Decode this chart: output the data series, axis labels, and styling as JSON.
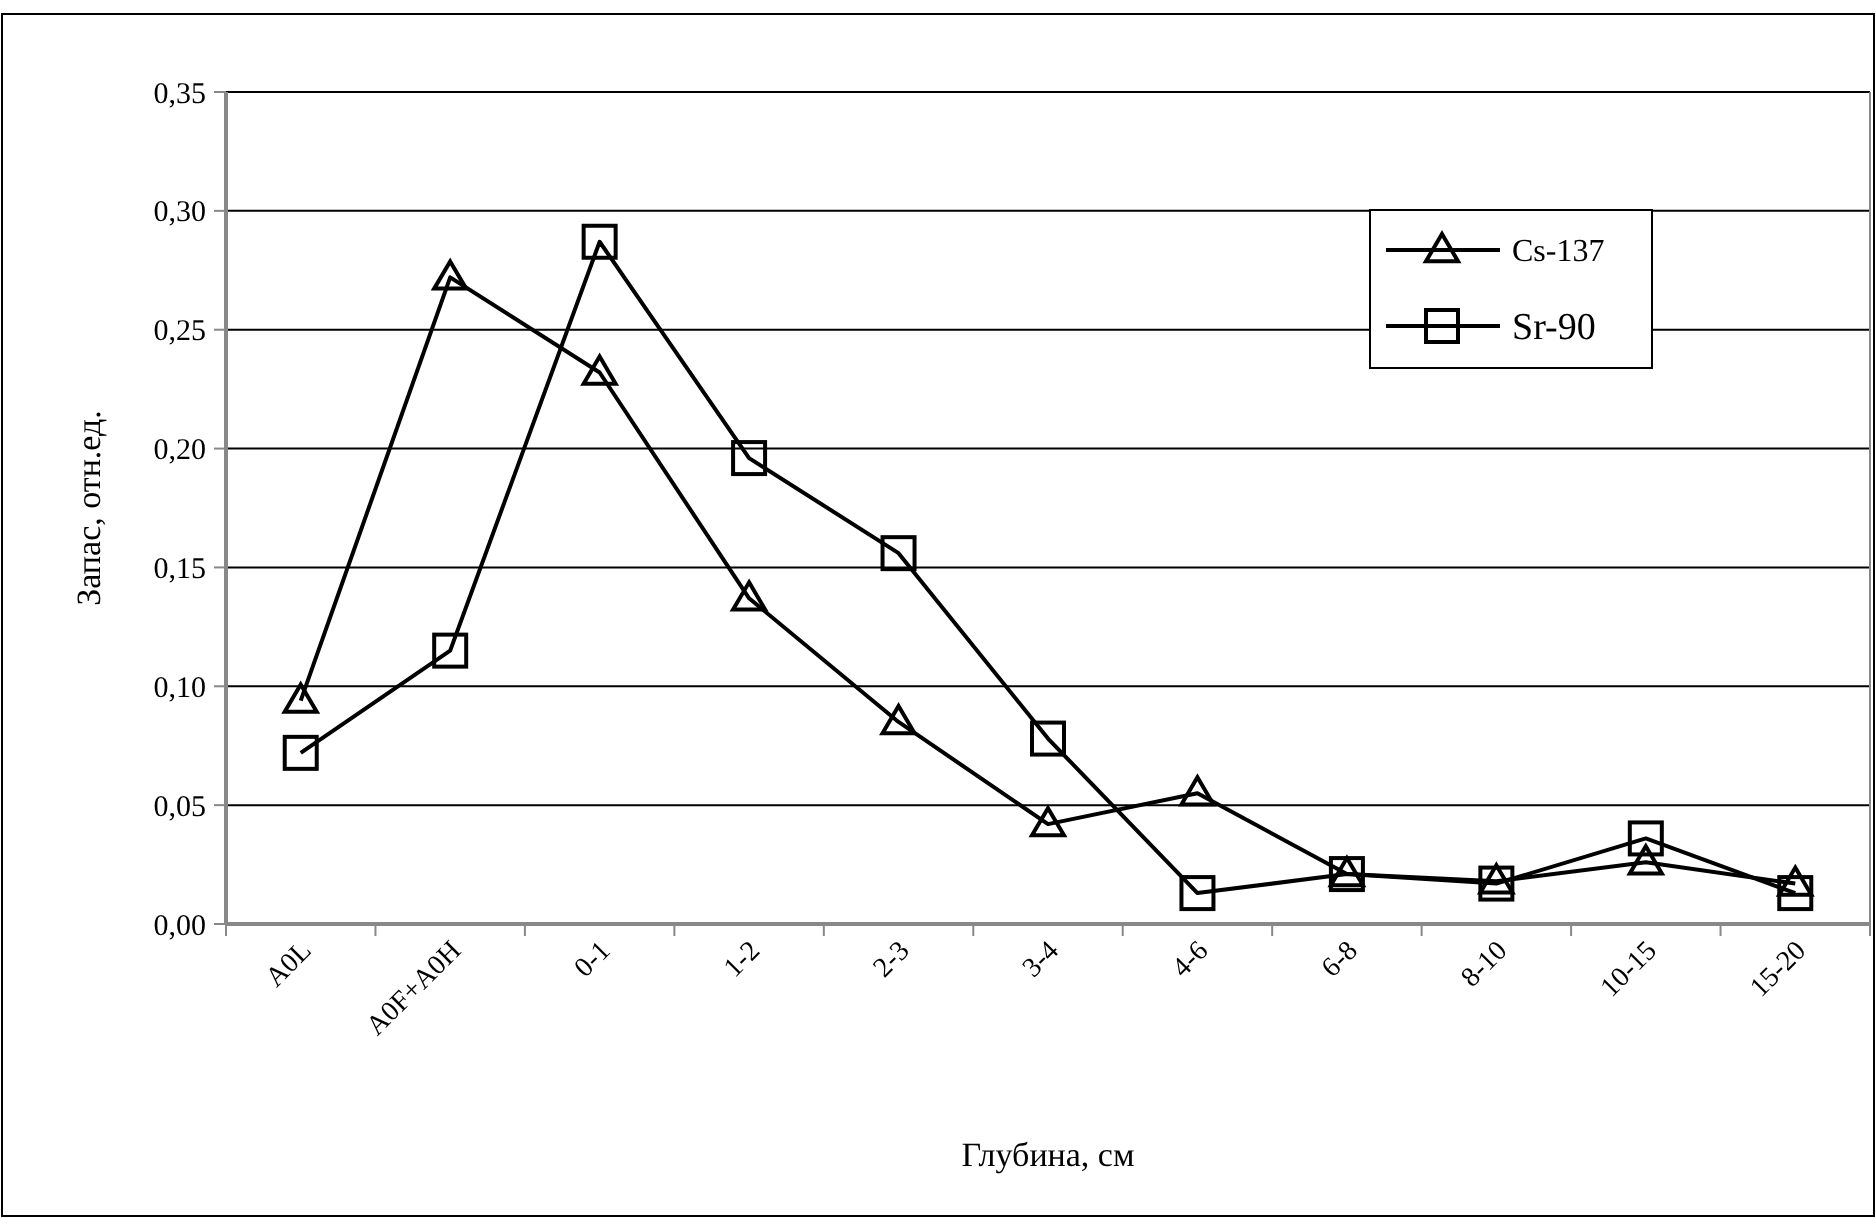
{
  "chart_data": {
    "type": "line",
    "xlabel": "Глубина, см",
    "ylabel": "Запас, отн.ед.",
    "categories": [
      "A0L",
      "A0F+A0H",
      "0-1",
      "1-2",
      "2-3",
      "3-4",
      "4-6",
      "6-8",
      "8-10",
      "10-15",
      "15-20"
    ],
    "series": [
      {
        "name": "Cs-137",
        "color": "#000000",
        "marker": "triangle",
        "values": [
          0.094,
          0.272,
          0.232,
          0.137,
          0.085,
          0.042,
          0.055,
          0.021,
          0.018,
          0.026,
          0.017
        ]
      },
      {
        "name": "Sr-90",
        "color": "#000000",
        "marker": "square",
        "values": [
          0.072,
          0.115,
          0.287,
          0.196,
          0.156,
          0.078,
          0.013,
          0.021,
          0.017,
          0.036,
          0.013
        ]
      }
    ],
    "ylim": [
      0,
      0.35
    ],
    "yticks": [
      {
        "value": 0,
        "label": "0,00"
      },
      {
        "value": 0.05,
        "label": "0,05"
      },
      {
        "value": 0.1,
        "label": "0,10"
      },
      {
        "value": 0.15,
        "label": "0,15"
      },
      {
        "value": 0.2,
        "label": "0,20"
      },
      {
        "value": 0.25,
        "label": "0,25"
      },
      {
        "value": 0.3,
        "label": "0,30"
      },
      {
        "value": 0.35,
        "label": "0,35"
      }
    ],
    "grid": "y",
    "legend": "top right",
    "line_style": "solid"
  }
}
